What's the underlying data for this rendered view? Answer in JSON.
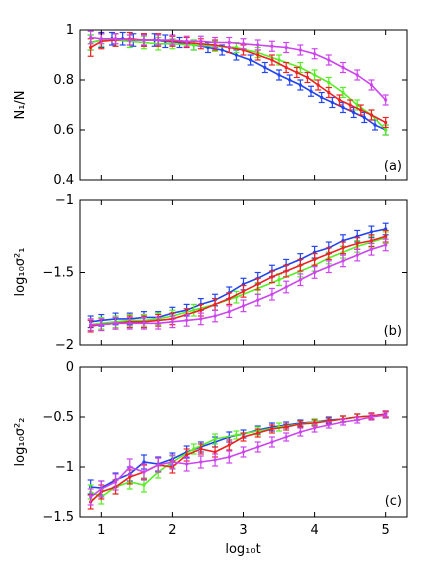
{
  "chart_data": [
    {
      "type": "line",
      "panel_label": "(a)",
      "ylabel": "N₁/N",
      "ylim": [
        0.4,
        1.0
      ],
      "yticks": [
        0.4,
        0.6,
        0.8,
        1.0
      ],
      "ytick_labels": [
        "0.4",
        "0.6",
        "0.8",
        "1"
      ],
      "xlim": [
        0.7,
        5.3
      ],
      "series": [
        {
          "color": "#2244ee",
          "x": [
            0.85,
            1.0,
            1.15,
            1.3,
            1.45,
            1.6,
            1.75,
            1.9,
            2.1,
            2.3,
            2.5,
            2.7,
            2.9,
            3.1,
            3.3,
            3.5,
            3.65,
            3.8,
            3.95,
            4.1,
            4.25,
            4.4,
            4.55,
            4.7,
            4.85,
            5.0
          ],
          "y": [
            0.95,
            0.96,
            0.965,
            0.965,
            0.96,
            0.96,
            0.96,
            0.955,
            0.95,
            0.94,
            0.93,
            0.92,
            0.9,
            0.88,
            0.85,
            0.82,
            0.8,
            0.78,
            0.755,
            0.73,
            0.71,
            0.69,
            0.67,
            0.65,
            0.62,
            0.6
          ],
          "err": [
            0.03,
            0.03,
            0.025,
            0.025,
            0.025,
            0.025,
            0.025,
            0.025,
            0.02,
            0.02,
            0.02,
            0.02,
            0.02,
            0.02,
            0.02,
            0.02,
            0.02,
            0.02,
            0.02,
            0.02,
            0.02,
            0.02,
            0.02,
            0.02,
            0.02,
            0.02
          ]
        },
        {
          "color": "#55ee22",
          "x": [
            0.85,
            1.0,
            1.2,
            1.4,
            1.6,
            1.8,
            2.0,
            2.3,
            2.6,
            2.9,
            3.2,
            3.5,
            3.8,
            4.0,
            4.2,
            4.4,
            4.6,
            4.8,
            5.0
          ],
          "y": [
            0.95,
            0.96,
            0.96,
            0.955,
            0.95,
            0.945,
            0.945,
            0.94,
            0.935,
            0.93,
            0.91,
            0.88,
            0.85,
            0.82,
            0.79,
            0.75,
            0.7,
            0.66,
            0.6
          ],
          "err": [
            0.03,
            0.025,
            0.025,
            0.025,
            0.025,
            0.025,
            0.02,
            0.02,
            0.02,
            0.02,
            0.02,
            0.02,
            0.02,
            0.02,
            0.02,
            0.02,
            0.02,
            0.02,
            0.02
          ]
        },
        {
          "color": "#ee2222",
          "x": [
            0.85,
            1.0,
            1.2,
            1.4,
            1.6,
            1.8,
            2.0,
            2.2,
            2.4,
            2.6,
            2.8,
            3.0,
            3.2,
            3.4,
            3.6,
            3.75,
            3.9,
            4.05,
            4.2,
            4.35,
            4.5,
            4.65,
            4.8,
            5.0
          ],
          "y": [
            0.93,
            0.955,
            0.96,
            0.965,
            0.96,
            0.96,
            0.955,
            0.95,
            0.945,
            0.94,
            0.93,
            0.92,
            0.9,
            0.88,
            0.85,
            0.83,
            0.81,
            0.78,
            0.75,
            0.72,
            0.7,
            0.68,
            0.66,
            0.63
          ],
          "err": [
            0.035,
            0.03,
            0.025,
            0.025,
            0.025,
            0.025,
            0.02,
            0.02,
            0.02,
            0.02,
            0.02,
            0.02,
            0.02,
            0.02,
            0.02,
            0.02,
            0.02,
            0.02,
            0.02,
            0.02,
            0.02,
            0.02,
            0.02,
            0.02
          ]
        },
        {
          "color": "#cc44ee",
          "x": [
            0.85,
            1.0,
            1.2,
            1.4,
            1.6,
            1.8,
            2.0,
            2.2,
            2.4,
            2.6,
            2.8,
            3.0,
            3.2,
            3.4,
            3.6,
            3.8,
            4.0,
            4.2,
            4.4,
            4.6,
            4.8,
            5.0
          ],
          "y": [
            0.97,
            0.965,
            0.965,
            0.96,
            0.96,
            0.96,
            0.96,
            0.955,
            0.955,
            0.95,
            0.95,
            0.945,
            0.94,
            0.935,
            0.93,
            0.92,
            0.905,
            0.88,
            0.85,
            0.82,
            0.78,
            0.72
          ],
          "err": [
            0.025,
            0.02,
            0.02,
            0.02,
            0.02,
            0.02,
            0.02,
            0.02,
            0.02,
            0.02,
            0.02,
            0.02,
            0.02,
            0.02,
            0.02,
            0.02,
            0.02,
            0.02,
            0.02,
            0.02,
            0.02,
            0.02
          ]
        }
      ]
    },
    {
      "type": "line",
      "panel_label": "(b)",
      "ylabel": "log₁₀σ²₁",
      "ylim": [
        -2,
        -1
      ],
      "yticks": [
        -2,
        -1.5,
        -1
      ],
      "ytick_labels": [
        "−2",
        "−1.5",
        "−1"
      ],
      "xlim": [
        0.7,
        5.3
      ],
      "series": [
        {
          "color": "#2244ee",
          "x": [
            0.85,
            1.0,
            1.2,
            1.4,
            1.6,
            1.8,
            2.0,
            2.2,
            2.4,
            2.6,
            2.8,
            3.0,
            3.2,
            3.4,
            3.6,
            3.8,
            4.0,
            4.2,
            4.4,
            4.6,
            4.8,
            5.0
          ],
          "y": [
            -1.84,
            -1.83,
            -1.82,
            -1.82,
            -1.81,
            -1.81,
            -1.78,
            -1.76,
            -1.72,
            -1.69,
            -1.64,
            -1.58,
            -1.54,
            -1.49,
            -1.45,
            -1.41,
            -1.36,
            -1.33,
            -1.28,
            -1.25,
            -1.22,
            -1.2
          ],
          "err": [
            0.04,
            0.04,
            0.04,
            0.04,
            0.04,
            0.04,
            0.04,
            0.04,
            0.04,
            0.04,
            0.04,
            0.04,
            0.04,
            0.04,
            0.04,
            0.04,
            0.04,
            0.04,
            0.04,
            0.04,
            0.04,
            0.04
          ]
        },
        {
          "color": "#55ee22",
          "x": [
            0.85,
            1.0,
            1.2,
            1.4,
            1.6,
            1.8,
            2.0,
            2.3,
            2.6,
            2.9,
            3.2,
            3.5,
            3.8,
            4.0,
            4.2,
            4.4,
            4.6,
            4.8,
            5.0
          ],
          "y": [
            -1.86,
            -1.85,
            -1.84,
            -1.83,
            -1.83,
            -1.82,
            -1.8,
            -1.76,
            -1.72,
            -1.67,
            -1.61,
            -1.55,
            -1.49,
            -1.45,
            -1.4,
            -1.36,
            -1.32,
            -1.29,
            -1.26
          ],
          "err": [
            0.04,
            0.04,
            0.04,
            0.04,
            0.04,
            0.04,
            0.04,
            0.04,
            0.04,
            0.04,
            0.04,
            0.04,
            0.04,
            0.04,
            0.04,
            0.04,
            0.04,
            0.04,
            0.04
          ]
        },
        {
          "color": "#ee2222",
          "x": [
            0.85,
            1.0,
            1.2,
            1.4,
            1.6,
            1.8,
            2.0,
            2.2,
            2.4,
            2.6,
            2.8,
            3.0,
            3.2,
            3.4,
            3.6,
            3.8,
            4.0,
            4.2,
            4.4,
            4.6,
            4.8,
            5.0
          ],
          "y": [
            -1.87,
            -1.86,
            -1.85,
            -1.84,
            -1.84,
            -1.83,
            -1.82,
            -1.79,
            -1.76,
            -1.72,
            -1.68,
            -1.63,
            -1.58,
            -1.53,
            -1.49,
            -1.45,
            -1.41,
            -1.37,
            -1.33,
            -1.3,
            -1.28,
            -1.25
          ],
          "err": [
            0.04,
            0.04,
            0.04,
            0.04,
            0.04,
            0.04,
            0.04,
            0.04,
            0.04,
            0.04,
            0.04,
            0.04,
            0.04,
            0.04,
            0.04,
            0.04,
            0.04,
            0.04,
            0.04,
            0.04,
            0.04,
            0.04
          ]
        },
        {
          "color": "#cc44ee",
          "x": [
            0.85,
            1.0,
            1.2,
            1.4,
            1.6,
            1.8,
            2.0,
            2.2,
            2.4,
            2.6,
            2.8,
            3.0,
            3.2,
            3.4,
            3.6,
            3.8,
            4.0,
            4.2,
            4.4,
            4.6,
            4.8,
            5.0
          ],
          "y": [
            -1.86,
            -1.86,
            -1.85,
            -1.85,
            -1.85,
            -1.85,
            -1.84,
            -1.83,
            -1.82,
            -1.8,
            -1.77,
            -1.73,
            -1.69,
            -1.65,
            -1.6,
            -1.55,
            -1.5,
            -1.46,
            -1.42,
            -1.38,
            -1.34,
            -1.31
          ],
          "err": [
            0.04,
            0.04,
            0.04,
            0.04,
            0.04,
            0.04,
            0.04,
            0.04,
            0.04,
            0.04,
            0.04,
            0.04,
            0.04,
            0.04,
            0.04,
            0.04,
            0.04,
            0.04,
            0.04,
            0.04,
            0.04,
            0.04
          ]
        }
      ]
    },
    {
      "type": "line",
      "panel_label": "(c)",
      "ylabel": "log₁₀σ²₂",
      "xlabel": "log₁₀t",
      "ylim": [
        -1.5,
        0
      ],
      "yticks": [
        -1.5,
        -1,
        -0.5,
        0
      ],
      "ytick_labels": [
        "−1.5",
        "−1",
        "−0.5",
        "0"
      ],
      "xlim": [
        0.7,
        5.3
      ],
      "xticks": [
        1,
        2,
        3,
        4,
        5
      ],
      "xtick_labels": [
        "1",
        "2",
        "3",
        "4",
        "5"
      ],
      "series": [
        {
          "color": "#2244ee",
          "x": [
            0.85,
            1.0,
            1.2,
            1.4,
            1.6,
            1.8,
            2.0,
            2.2,
            2.4,
            2.6,
            2.8,
            3.0,
            3.2,
            3.4,
            3.6,
            3.8,
            4.0,
            4.2,
            4.4,
            4.6,
            4.8,
            5.0
          ],
          "y": [
            -1.2,
            -1.21,
            -1.13,
            -1.07,
            -0.95,
            -0.97,
            -0.92,
            -0.85,
            -0.8,
            -0.75,
            -0.7,
            -0.67,
            -0.63,
            -0.6,
            -0.58,
            -0.56,
            -0.55,
            -0.53,
            -0.52,
            -0.5,
            -0.49,
            -0.47
          ],
          "err": [
            0.07,
            0.07,
            0.07,
            0.07,
            0.07,
            0.07,
            0.06,
            0.06,
            0.05,
            0.05,
            0.05,
            0.04,
            0.04,
            0.04,
            0.03,
            0.03,
            0.03,
            0.03,
            0.03,
            0.03,
            0.03,
            0.03
          ]
        },
        {
          "color": "#55ee22",
          "x": [
            0.85,
            1.0,
            1.2,
            1.4,
            1.6,
            1.8,
            2.0,
            2.3,
            2.6,
            2.9,
            3.2,
            3.5,
            3.8,
            4.0,
            4.2,
            4.4,
            4.6,
            4.8,
            5.0
          ],
          "y": [
            -1.25,
            -1.3,
            -1.2,
            -1.15,
            -1.18,
            -1.05,
            -0.95,
            -0.82,
            -0.72,
            -0.68,
            -0.64,
            -0.6,
            -0.57,
            -0.55,
            -0.54,
            -0.52,
            -0.5,
            -0.49,
            -0.48
          ],
          "err": [
            0.07,
            0.07,
            0.07,
            0.07,
            0.07,
            0.06,
            0.06,
            0.05,
            0.05,
            0.04,
            0.04,
            0.04,
            0.03,
            0.03,
            0.03,
            0.03,
            0.03,
            0.03,
            0.03
          ]
        },
        {
          "color": "#ee2222",
          "x": [
            0.85,
            1.0,
            1.2,
            1.4,
            1.6,
            1.8,
            2.0,
            2.2,
            2.4,
            2.6,
            2.8,
            3.0,
            3.2,
            3.4,
            3.6,
            3.8,
            4.0,
            4.2,
            4.4,
            4.6,
            4.8,
            5.0
          ],
          "y": [
            -1.35,
            -1.25,
            -1.2,
            -1.1,
            -1.05,
            -0.98,
            -1.0,
            -0.88,
            -0.82,
            -0.85,
            -0.78,
            -0.7,
            -0.66,
            -0.62,
            -0.6,
            -0.57,
            -0.56,
            -0.54,
            -0.52,
            -0.5,
            -0.49,
            -0.47
          ],
          "err": [
            0.07,
            0.07,
            0.07,
            0.07,
            0.07,
            0.07,
            0.06,
            0.06,
            0.05,
            0.05,
            0.05,
            0.04,
            0.04,
            0.04,
            0.03,
            0.03,
            0.03,
            0.03,
            0.03,
            0.03,
            0.03,
            0.03
          ]
        },
        {
          "color": "#cc44ee",
          "x": [
            0.85,
            1.0,
            1.2,
            1.4,
            1.6,
            1.8,
            2.0,
            2.2,
            2.4,
            2.6,
            2.8,
            3.0,
            3.2,
            3.4,
            3.6,
            3.8,
            4.0,
            4.2,
            4.4,
            4.6,
            4.8,
            5.0
          ],
          "y": [
            -1.3,
            -1.22,
            -1.15,
            -1.0,
            -1.05,
            -0.98,
            -0.95,
            -0.97,
            -0.95,
            -0.93,
            -0.9,
            -0.85,
            -0.8,
            -0.75,
            -0.7,
            -0.65,
            -0.61,
            -0.58,
            -0.55,
            -0.53,
            -0.5,
            -0.48
          ],
          "err": [
            0.08,
            0.08,
            0.08,
            0.08,
            0.08,
            0.07,
            0.07,
            0.07,
            0.06,
            0.06,
            0.06,
            0.05,
            0.05,
            0.05,
            0.04,
            0.04,
            0.04,
            0.03,
            0.03,
            0.03,
            0.03,
            0.03
          ]
        }
      ]
    }
  ]
}
